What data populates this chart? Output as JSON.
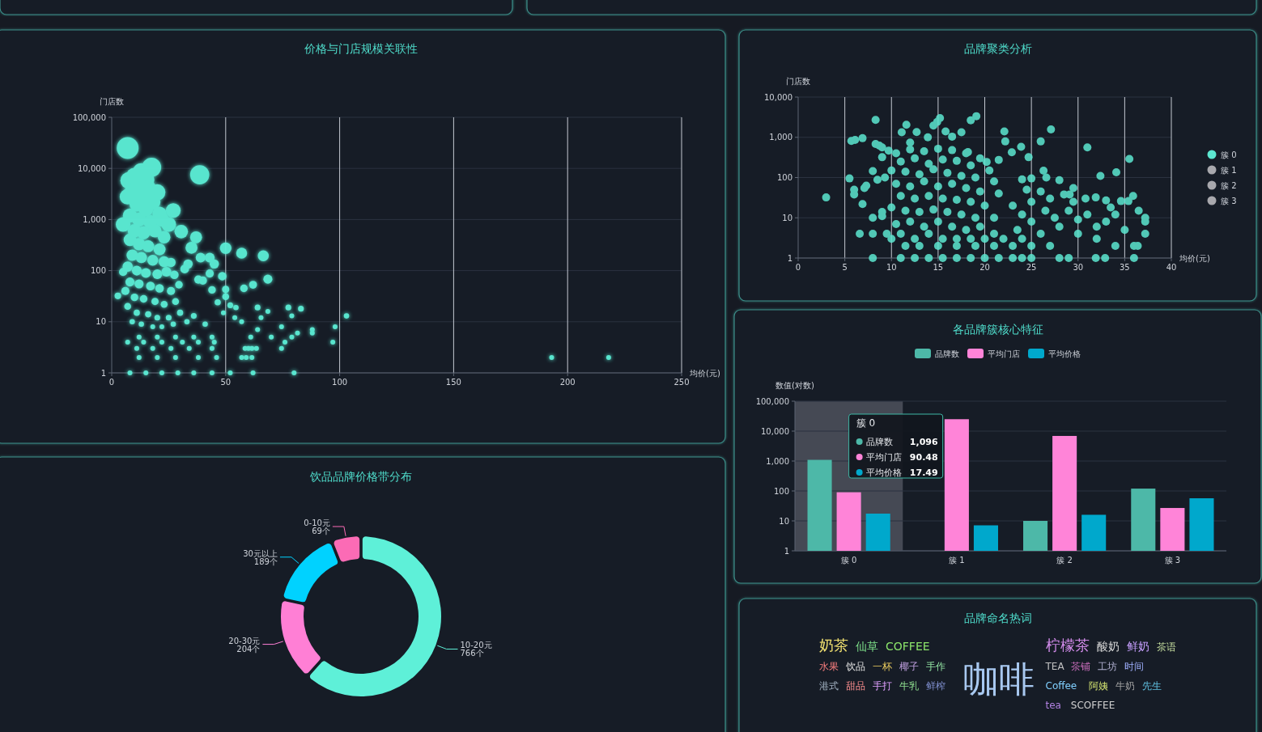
{
  "chart_data": [
    {
      "type": "bubble",
      "title": "价格与门店规模关联性",
      "xlabel": "均价(元)",
      "ylabel": "门店数",
      "color": "#5cf0d8",
      "marker": "circle",
      "log": "y",
      "grid": true,
      "xlim": [
        0,
        250
      ],
      "ylim": [
        1,
        100000
      ],
      "xticks": [
        0,
        50,
        100,
        150,
        200,
        250
      ],
      "yticks": [
        1,
        10,
        100,
        {
          "value": 1000,
          "label": "1,000"
        },
        {
          "value": 10000,
          "label": "10,000"
        },
        {
          "value": 100000,
          "label": "100,000"
        }
      ],
      "x": [
        7,
        38.6,
        17.5,
        7.5,
        6.9,
        20,
        27,
        5,
        25,
        30.5,
        37,
        35,
        50,
        57,
        66.5,
        39,
        43,
        45,
        26,
        33.5,
        32,
        5,
        27.5,
        43,
        48.5,
        68.5,
        38,
        40,
        62,
        58,
        44,
        50,
        29.5,
        2.7,
        50,
        46.5,
        52,
        54.5,
        64,
        77.5,
        83,
        79,
        103,
        68.5,
        65.5,
        54,
        49,
        57,
        74.5,
        98,
        88,
        88,
        81.5,
        64,
        61,
        70,
        79,
        97,
        76,
        74.5,
        58.5,
        60,
        61.5,
        63.5,
        57,
        59,
        61.5,
        62,
        52,
        80,
        193,
        218,
        10,
        13,
        15,
        12,
        16,
        9,
        14,
        18,
        11,
        15,
        21,
        8,
        12,
        17,
        22,
        10,
        14,
        19,
        23,
        8,
        12,
        16,
        21,
        9,
        13,
        18,
        23,
        7,
        11,
        15,
        20,
        24,
        8,
        12,
        17,
        21,
        26,
        6,
        10,
        14,
        19,
        23,
        28,
        7,
        11,
        16,
        20,
        25,
        30,
        9,
        13,
        18,
        22,
        27,
        33,
        36,
        41,
        12,
        20,
        28,
        36,
        44,
        7,
        14,
        22,
        31,
        38,
        45,
        11,
        18,
        26,
        34,
        44,
        12,
        20,
        28,
        38,
        46,
        8,
        15,
        22,
        29,
        36,
        44
      ],
      "values": [
        25000,
        7500,
        10500,
        5800,
        2800,
        3400,
        1500,
        800,
        800,
        580,
        450,
        280,
        275,
        220,
        195,
        180,
        180,
        135,
        145,
        135,
        108,
        94,
        83,
        88,
        78,
        68,
        67,
        64,
        53,
        45,
        42,
        43,
        53,
        32,
        31,
        24,
        21,
        19,
        19,
        19,
        18,
        13,
        13,
        16,
        12,
        12,
        15,
        10,
        8,
        8,
        7,
        6,
        6,
        7,
        5,
        5,
        5,
        4,
        4,
        3,
        3,
        3,
        3,
        3,
        2,
        2,
        2,
        1,
        1,
        1,
        2,
        2,
        7000,
        8500,
        6000,
        4500,
        4000,
        3500,
        2800,
        2200,
        2000,
        1600,
        1300,
        1200,
        1000,
        900,
        1000,
        600,
        550,
        600,
        450,
        400,
        330,
        300,
        260,
        200,
        180,
        160,
        150,
        120,
        100,
        90,
        85,
        95,
        60,
        55,
        50,
        45,
        40,
        40,
        30,
        28,
        25,
        22,
        25,
        20,
        15,
        14,
        12,
        12,
        15,
        10,
        9,
        8,
        8,
        9,
        10,
        13,
        9,
        5,
        5,
        5,
        5,
        5,
        4,
        4,
        4,
        4,
        4,
        4,
        3,
        3,
        3,
        3,
        3,
        2,
        2,
        2,
        2,
        2,
        1,
        1,
        1,
        1,
        1,
        1
      ],
      "sizes": [
        1,
        0.77,
        0.77,
        0.6,
        0.5,
        0.55,
        0.45,
        0.45,
        0.45,
        0.38,
        0.3,
        0.3,
        0.28,
        0.25,
        0.25,
        0.2,
        0.2,
        0.18,
        0.18,
        0.18,
        0.16,
        0.14,
        0.15,
        0.14,
        0.15,
        0.17,
        0.14,
        0.14,
        0.13,
        0.12,
        0.12,
        0.11,
        0.12,
        0.09,
        0.1,
        0.08,
        0.07,
        0.06,
        0.07,
        0.07,
        0.07,
        0.05,
        0.06,
        0.05,
        0.05,
        0.05,
        0.05,
        0.05,
        0.05,
        0.05,
        0.05,
        0.05,
        0.05,
        0.05,
        0.05,
        0.05,
        0.05,
        0.05,
        0.05,
        0.05,
        0.05,
        0.05,
        0.05,
        0.05,
        0.05,
        0.05,
        0.05,
        0.05,
        0.05,
        0.05,
        0.05,
        0.05,
        0.6,
        0.65,
        0.6,
        0.55,
        0.55,
        0.5,
        0.5,
        0.5,
        0.45,
        0.45,
        0.42,
        0.42,
        0.4,
        0.4,
        0.42,
        0.38,
        0.36,
        0.36,
        0.33,
        0.33,
        0.32,
        0.3,
        0.3,
        0.27,
        0.26,
        0.25,
        0.25,
        0.22,
        0.2,
        0.2,
        0.2,
        0.2,
        0.17,
        0.17,
        0.16,
        0.15,
        0.14,
        0.14,
        0.12,
        0.12,
        0.11,
        0.1,
        0.1,
        0.1,
        0.08,
        0.08,
        0.07,
        0.07,
        0.08,
        0.06,
        0.06,
        0.05,
        0.05,
        0.06,
        0.06,
        0.07,
        0.06,
        0.05,
        0.05,
        0.05,
        0.05,
        0.05,
        0.05,
        0.05,
        0.05,
        0.05,
        0.05,
        0.05,
        0.05,
        0.05,
        0.05,
        0.05,
        0.05,
        0.05,
        0.05,
        0.05,
        0.05,
        0.05,
        0.05,
        0.05,
        0.05,
        0.05,
        0.05,
        0.05
      ]
    },
    {
      "type": "scatter",
      "title": "品牌聚类分析",
      "xlabel": "均价(元)",
      "ylabel": "门店数",
      "marker": "circle",
      "log": "y",
      "grid": true,
      "legend": "right",
      "xlim": [
        0,
        40
      ],
      "ylim": [
        1,
        10000
      ],
      "xticks": [
        0,
        5,
        10,
        15,
        20,
        25,
        30,
        35,
        40
      ],
      "yticks": [
        1,
        10,
        100,
        {
          "value": 1000,
          "label": "1,000"
        },
        {
          "value": 10000,
          "label": "10,000"
        }
      ],
      "series": [
        {
          "name": "簇 0",
          "color": "#5ce6d0",
          "x": [
            3,
            5.5,
            5.7,
            6.1,
            6.9,
            6,
            6,
            6.6,
            6.9,
            7.1,
            7.3,
            8,
            8,
            8,
            8.3,
            8.3,
            8.7,
            9,
            8,
            8.5,
            9,
            9.3,
            9.5,
            10,
            9,
            9,
            9.7,
            11.1,
            11.6,
            12,
            12.7,
            13.9,
            14.5,
            14.9,
            15.2,
            15.8,
            16.5,
            17.5,
            18.5,
            19.1,
            18.2,
            20.2,
            21.5,
            22.1,
            22.2,
            22.9,
            23.9,
            24.7,
            26,
            27.1,
            26.3,
            26.6,
            28,
            31,
            32.4,
            34.1,
            35.5,
            29.5,
            28.5,
            29.1,
            30.8,
            31.9,
            33,
            34.6,
            35.9,
            35.4,
            37.2,
            37.2,
            37.2,
            36.4,
            36,
            36,
            31.9,
            32.9,
            29,
            28,
            24,
            25,
            24.5,
            26,
            27,
            25,
            23,
            26.5,
            24,
            27.5,
            25,
            28,
            23.5,
            26,
            24,
            27,
            29,
            30,
            31,
            32,
            33,
            34,
            35,
            30,
            32,
            34,
            36.5,
            33.5,
            29.5,
            10.5,
            12,
            13.5,
            15,
            16.5,
            18,
            19.5,
            11,
            12.5,
            14,
            15.5,
            17,
            18.5,
            20.5,
            10,
            11.5,
            13,
            14.5,
            16,
            17.5,
            19,
            21,
            10.5,
            12,
            13.5,
            15,
            16.5,
            18,
            19.5,
            21.5,
            11,
            12.5,
            14,
            15.5,
            17,
            18.5,
            20,
            10,
            11.5,
            13,
            14.5,
            16,
            17.5,
            19,
            21,
            10.5,
            12,
            13.5,
            15,
            16.5,
            18,
            19.5,
            21,
            11,
            12.5,
            14,
            15.5,
            17,
            18.5,
            20,
            22,
            11.5,
            13,
            15,
            17,
            19,
            21,
            23,
            25,
            11,
            12.5,
            14,
            15.5,
            17,
            18.5,
            20,
            21.5,
            23,
            24,
            25
          ],
          "values": [
            32,
            95,
            810,
            860,
            950,
            50,
            38,
            4,
            22,
            55,
            63,
            1,
            4,
            10,
            2700,
            680,
            620,
            560,
            145,
            88,
            320,
            100,
            4,
            3,
            14,
            11,
            465,
            1330,
            2050,
            740,
            1350,
            1000,
            1960,
            2400,
            3000,
            1400,
            1040,
            1330,
            2640,
            3350,
            430,
            245,
            275,
            1400,
            790,
            425,
            580,
            320,
            790,
            1570,
            148,
            100,
            86,
            560,
            110,
            135,
            290,
            55,
            38,
            38,
            30,
            32,
            27,
            26,
            35,
            26,
            10,
            8,
            4,
            2,
            2,
            1,
            1,
            1,
            1,
            1,
            90,
            95,
            50,
            45,
            30,
            25,
            20,
            15,
            12,
            10,
            8,
            6,
            5,
            4,
            3,
            2,
            15,
            9,
            12,
            6,
            8,
            12,
            5,
            4,
            3,
            2,
            15,
            18,
            25,
            400,
            500,
            450,
            520,
            480,
            400,
            300,
            250,
            300,
            220,
            280,
            260,
            200,
            150,
            150,
            140,
            120,
            160,
            130,
            110,
            100,
            80,
            70,
            60,
            80,
            60,
            70,
            55,
            45,
            40,
            35,
            30,
            35,
            30,
            28,
            25,
            20,
            18,
            15,
            14,
            16,
            14,
            12,
            10,
            10,
            7,
            8,
            6,
            8,
            6,
            5,
            6,
            4,
            4,
            3,
            4,
            3,
            3,
            3,
            3,
            3,
            2,
            2,
            2,
            2,
            2,
            2,
            2,
            2,
            1,
            1,
            1,
            1,
            1,
            1,
            1,
            1,
            1,
            1,
            1
          ]
        },
        {
          "name": "簇 1",
          "color": "#a8a8ad"
        },
        {
          "name": "簇 2",
          "color": "#a8a8ad"
        },
        {
          "name": "簇 3",
          "color": "#a8a8ad"
        }
      ]
    },
    {
      "type": "bar",
      "title": "各品牌簇核心特征",
      "ylabel": "数值(对数)",
      "log": "y",
      "grid": "y",
      "legend": "top",
      "categories": [
        "簇 0",
        "簇 1",
        "簇 2",
        "簇 3"
      ],
      "ylim": [
        1,
        100000
      ],
      "yticks": [
        1,
        10,
        100,
        {
          "value": 1000,
          "label": "1,000"
        },
        {
          "value": 10000,
          "label": "10,000"
        },
        {
          "value": 100000,
          "label": "100,000"
        }
      ],
      "series": [
        {
          "name": "品牌数",
          "color": "#4db8a8",
          "values": [
            1096,
            null,
            10,
            120
          ]
        },
        {
          "name": "平均门店",
          "color": "#ff84d8",
          "values": [
            90.48,
            25000,
            6900,
            27
          ]
        },
        {
          "name": "平均价格",
          "color": "#00a8cc",
          "values": [
            17.49,
            7.1,
            16,
            57
          ]
        }
      ],
      "bands": [
        {
          "axis": "x",
          "from": "簇 0",
          "to": "簇 0",
          "color": "#454954"
        }
      ],
      "annotations": [
        "1,096",
        "90.48",
        "17.49"
      ]
    },
    {
      "type": "donut",
      "title": "饮品品牌价格带分布",
      "categories": [
        "10-20元",
        "20-30元",
        "30元以上",
        "0-10元"
      ],
      "values": [
        766,
        204,
        189,
        69
      ],
      "colors": [
        "#5ef0d8",
        "#ff7fd5",
        "#00d2ff",
        "#fb6bb5"
      ],
      "value_labels": [
        "766个",
        "204个",
        "189个",
        "69个"
      ]
    },
    {
      "type": "other",
      "title": "品牌命名热词",
      "categories": [
        "咖啡",
        "柠檬茶",
        "奶茶",
        "酸奶",
        "仙草",
        "鲜奶",
        "COFFEE",
        "茶语",
        "水果",
        "TEA",
        "饮品",
        "茶铺",
        "一杯",
        "工坊",
        "椰子",
        "时间",
        "手作",
        "Coffee",
        "港式",
        "阿姨",
        "甜品",
        "牛奶",
        "手打",
        "先生",
        "牛乳",
        "tea",
        "鲜榨",
        "SCOFFEE"
      ],
      "colors": [
        "#a8c8f0",
        "#d08ae8",
        "#f0e070",
        "#d8d8d8",
        "#7ee08a",
        "#c8a0ff",
        "#8be36a",
        "#c8e0a0",
        "#ff8080",
        "#c0c0c0",
        "#e0e0e0",
        "#d070c0",
        "#f0d060",
        "#b0b0d0",
        "#c0a0e0",
        "#a0b0ff",
        "#90e0a0",
        "#80d0ff",
        "#a0b0c0",
        "#d0e070",
        "#ff9090",
        "#a0a0a0",
        "#e0a0ff",
        "#60c0e0",
        "#90e090",
        "#b080e0",
        "#8090d0",
        "#d0d0d0"
      ]
    }
  ]
}
